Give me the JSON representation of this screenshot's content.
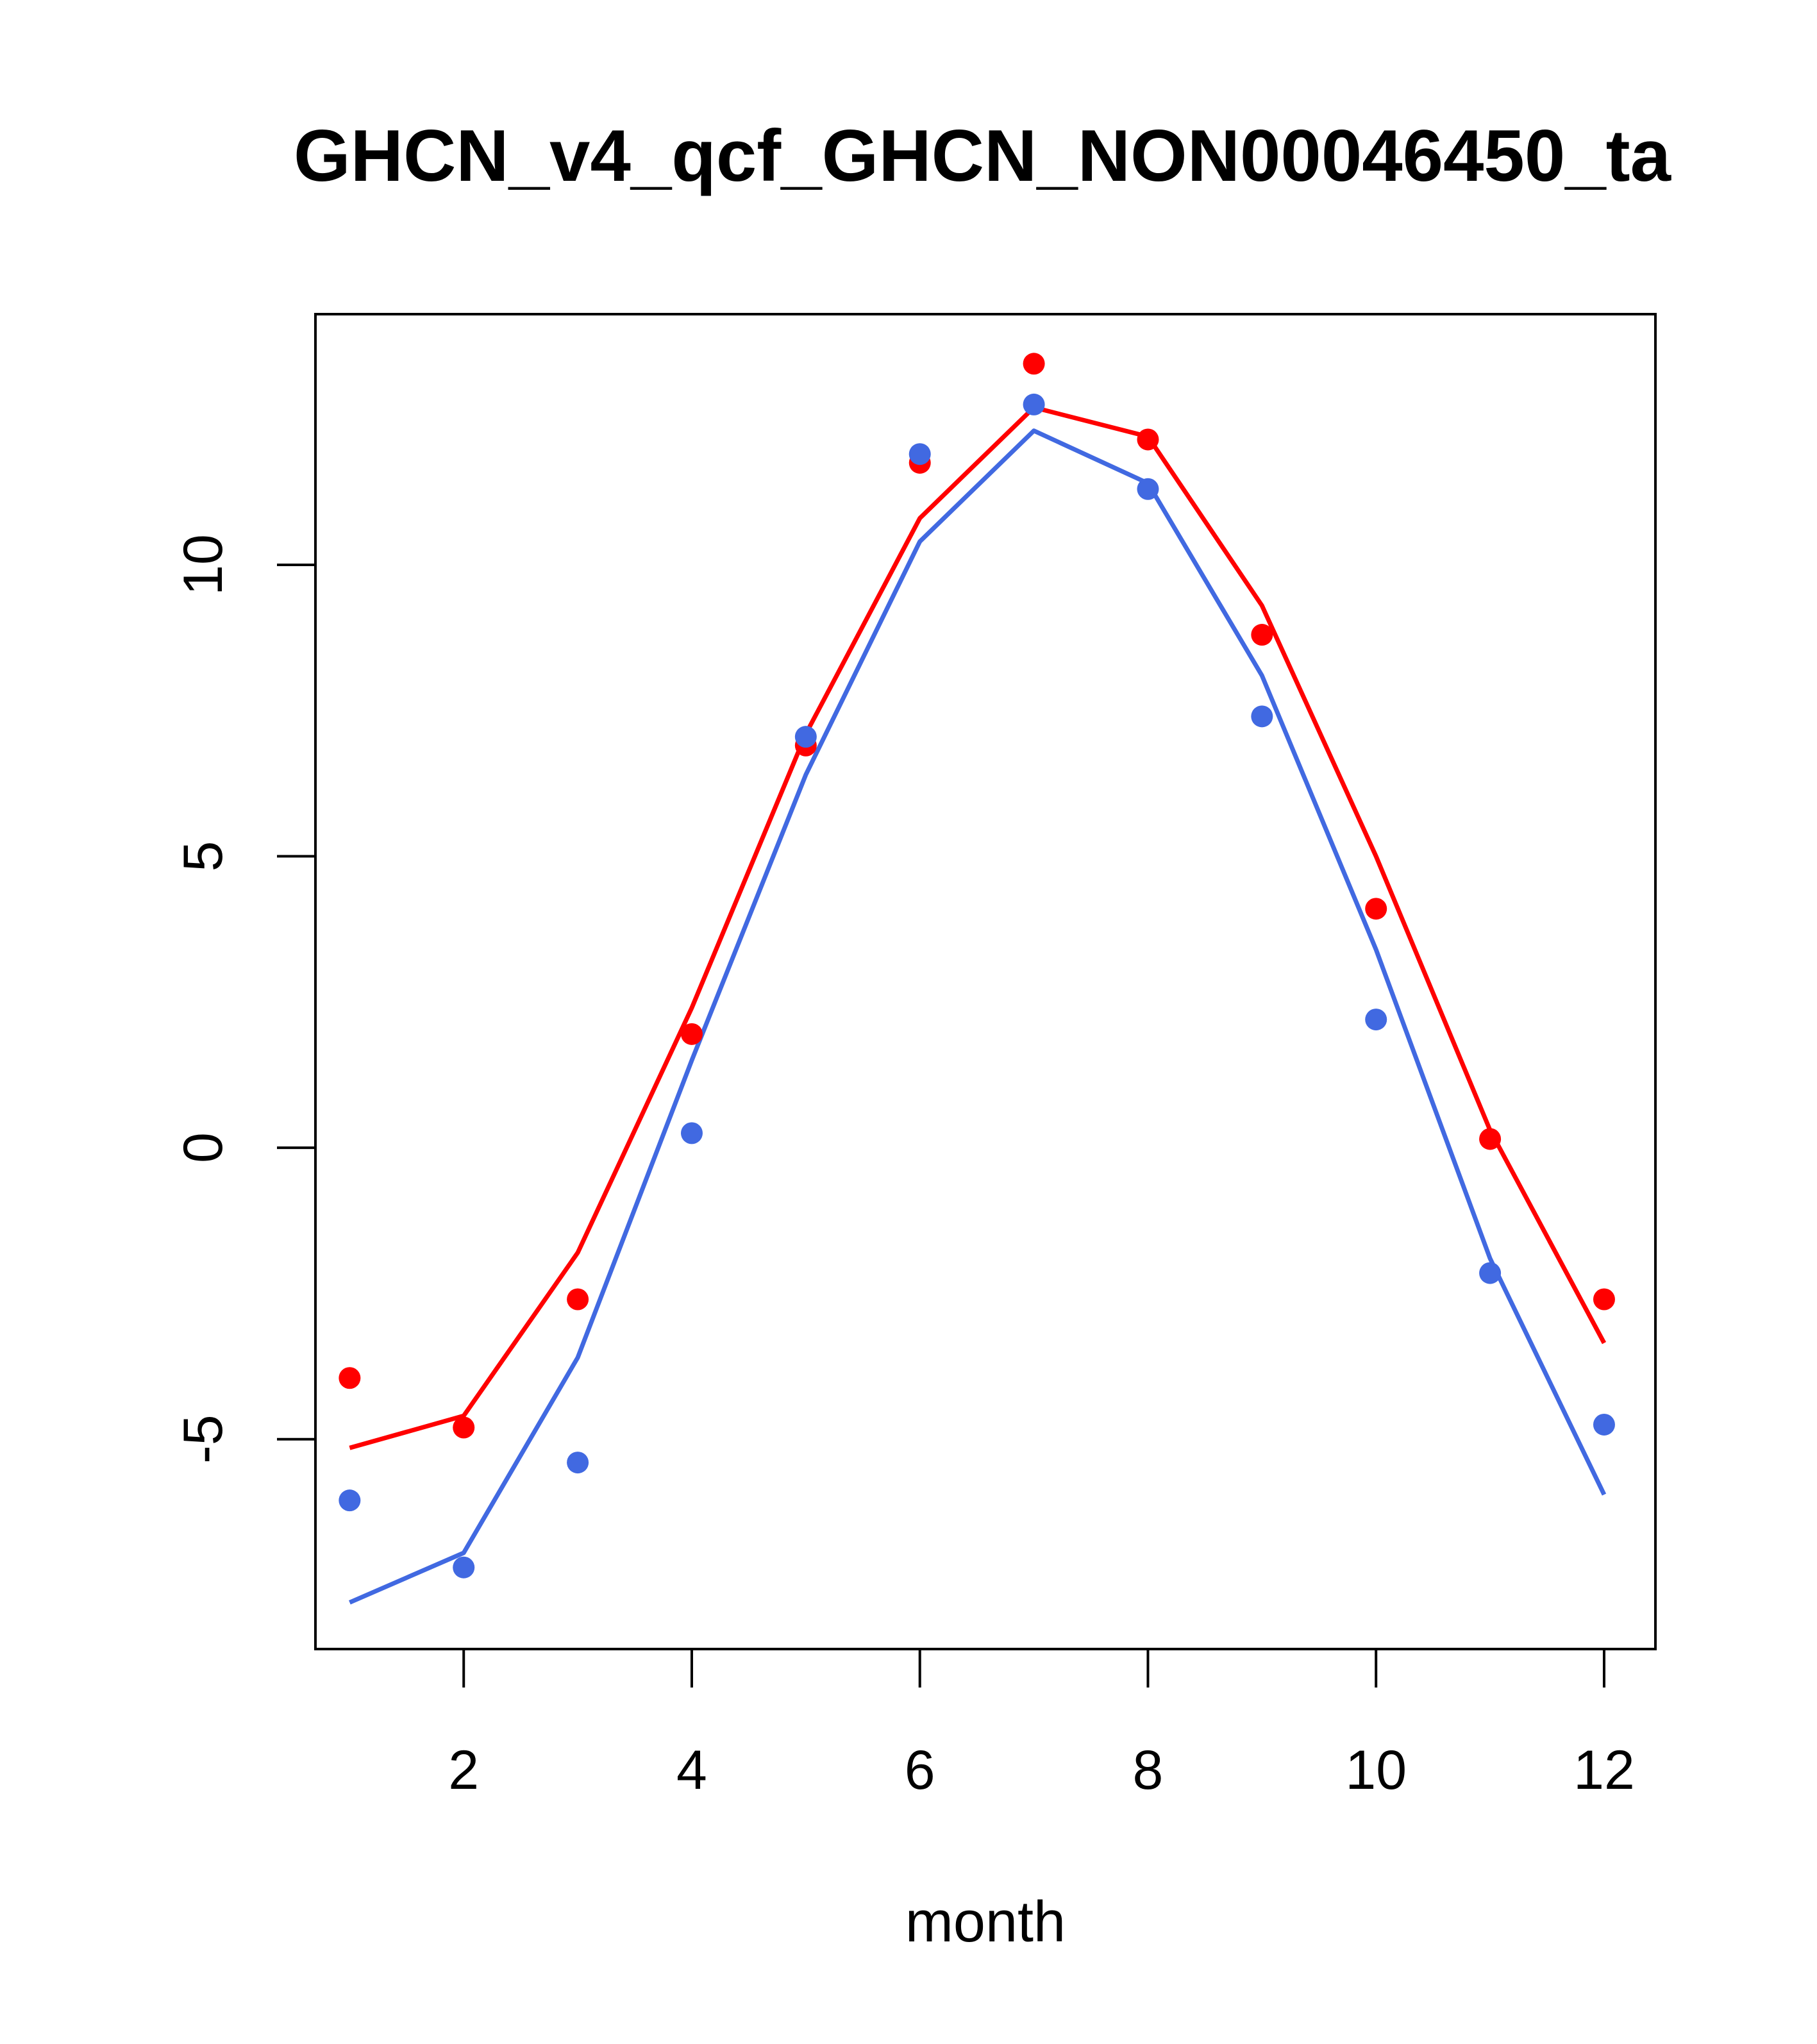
{
  "chart_data": {
    "type": "line",
    "title": "GHCN_v4_qcf_GHCN_NON00046450_ta",
    "xlabel": "month",
    "ylabel": "",
    "xlim": [
      0.7,
      12.45
    ],
    "ylim": [
      -8.6,
      14.3
    ],
    "x_ticks": [
      2,
      4,
      6,
      8,
      10,
      12
    ],
    "y_ticks": [
      -5,
      0,
      5,
      10
    ],
    "grid": false,
    "colors": {
      "red": "#ff0000",
      "blue": "#4169e1"
    },
    "series": [
      {
        "color": "#ff0000",
        "x": [
          1,
          2,
          3,
          4,
          5,
          6,
          7,
          8,
          9,
          10,
          11,
          12
        ],
        "line": [
          -5.15,
          -4.6,
          -1.8,
          2.4,
          7.1,
          10.8,
          12.7,
          12.2,
          9.3,
          5.0,
          0.3,
          -3.35
        ],
        "points": [
          -3.95,
          -4.8,
          -2.6,
          1.95,
          6.9,
          11.75,
          13.45,
          12.15,
          8.8,
          4.1,
          0.15,
          -2.6
        ]
      },
      {
        "color": "#4169e1",
        "x": [
          1,
          2,
          3,
          4,
          5,
          6,
          7,
          8,
          9,
          10,
          11,
          12
        ],
        "line": [
          -7.8,
          -6.95,
          -3.6,
          1.5,
          6.4,
          10.4,
          12.3,
          11.4,
          8.1,
          3.4,
          -1.9,
          -5.95
        ],
        "points": [
          -6.05,
          -7.2,
          -5.4,
          0.25,
          7.05,
          11.9,
          12.75,
          11.3,
          7.4,
          2.2,
          -2.15,
          -4.75
        ]
      }
    ]
  }
}
